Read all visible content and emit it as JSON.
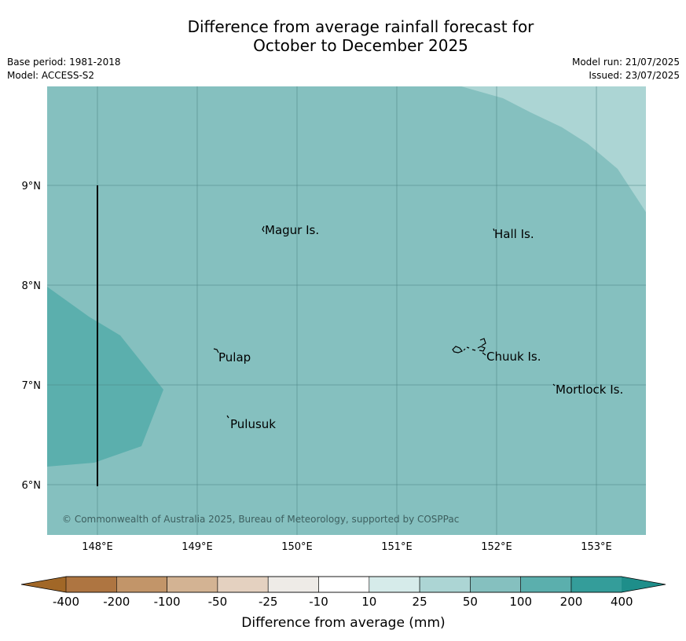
{
  "header": {
    "title_line1": "Difference from average rainfall forecast for",
    "title_line2": "October to December 2025",
    "base_period": "Base period: 1981-2018",
    "model": "Model: ACCESS-S2",
    "model_run": "Model run: 21/07/2025",
    "issued": "Issued: 23/07/2025"
  },
  "map": {
    "lat_labels": [
      "9°N",
      "8°N",
      "7°N",
      "6°N"
    ],
    "lon_labels": [
      "148°E",
      "149°E",
      "150°E",
      "151°E",
      "152°E",
      "153°E"
    ],
    "places": [
      {
        "name": "Magur Is."
      },
      {
        "name": "Hall Is."
      },
      {
        "name": "Pulap"
      },
      {
        "name": "Chuuk Is."
      },
      {
        "name": "Mortlock Is."
      },
      {
        "name": "Pulusuk"
      }
    ],
    "copyright": "© Commonwealth of Australia 2025, Bureau of Meteorology, supported by COSPPac",
    "background_color": "#85c0bf",
    "high_zone_color": "#5bafad",
    "low_zone_color": "#acd5d4"
  },
  "colorbar": {
    "labels": [
      "-400",
      "-200",
      "-100",
      "-50",
      "-25",
      "-10",
      "10",
      "25",
      "50",
      "100",
      "200",
      "400"
    ],
    "colors": [
      "#ae7541",
      "#c29569",
      "#d3b393",
      "#e4d1c0",
      "#eeebe7",
      "#ffffff",
      "#d6ebea",
      "#acd5d4",
      "#85c0bf",
      "#5bafad",
      "#349d9a"
    ],
    "under_color": "#a16727",
    "over_color": "#1e8e8a",
    "title": "Difference from average (mm)"
  }
}
